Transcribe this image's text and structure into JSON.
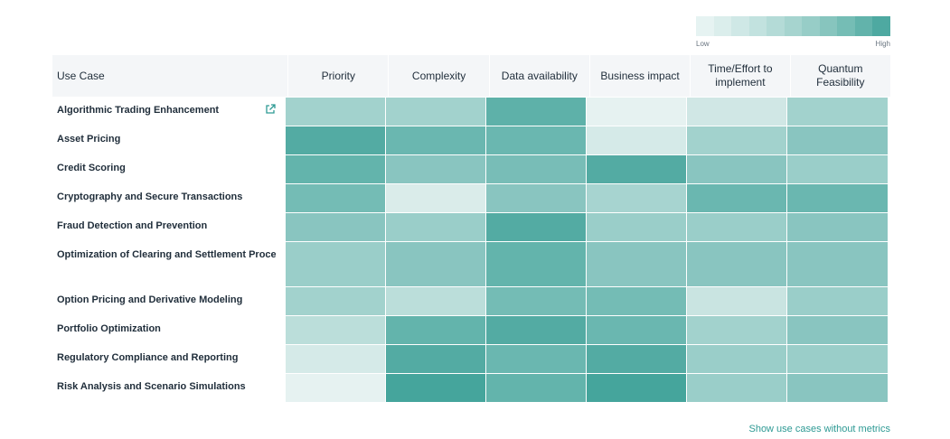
{
  "legend": {
    "low_label": "Low",
    "high_label": "High",
    "colors": [
      "#e6f3f2",
      "#dbeeec",
      "#cfe8e6",
      "#c2e2df",
      "#b4dbd7",
      "#a6d4cf",
      "#97cdc7",
      "#87c5be",
      "#75bdb5",
      "#62b3ab",
      "#4ea9a1"
    ]
  },
  "table": {
    "columns": [
      "Use Case",
      "Priority",
      "Complexity",
      "Data availability",
      "Business impact",
      "Time/Effort to implement",
      "Quantum Feasibility"
    ],
    "rows": [
      {
        "label": "Algorithmic Trading Enhancement",
        "link_icon": "external-link-icon",
        "levels": [
          0.45,
          0.45,
          0.85,
          0.05,
          0.18,
          0.45
        ]
      },
      {
        "label": "Asset Pricing",
        "levels": [
          0.92,
          0.78,
          0.78,
          0.15,
          0.45,
          0.6
        ]
      },
      {
        "label": "Credit Scoring",
        "levels": [
          0.82,
          0.6,
          0.7,
          0.92,
          0.6,
          0.5
        ]
      },
      {
        "label": "Cryptography and Secure Transactions",
        "levels": [
          0.72,
          0.12,
          0.6,
          0.42,
          0.78,
          0.78
        ]
      },
      {
        "label": "Fraud Detection and Prevention",
        "levels": [
          0.6,
          0.5,
          0.92,
          0.5,
          0.5,
          0.6
        ]
      },
      {
        "label": "Optimization of Clearing and Settlement Proce",
        "levels": [
          0.5,
          0.6,
          0.82,
          0.6,
          0.6,
          0.6
        ]
      },
      {
        "label": "Option Pricing and Derivative Modeling",
        "levels": [
          0.45,
          0.3,
          0.72,
          0.72,
          0.22,
          0.5
        ]
      },
      {
        "label": "Portfolio Optimization",
        "levels": [
          0.3,
          0.82,
          0.92,
          0.78,
          0.45,
          0.6
        ]
      },
      {
        "label": "Regulatory Compliance and Reporting",
        "levels": [
          0.15,
          0.92,
          0.78,
          0.92,
          0.5,
          0.5
        ]
      },
      {
        "label": "Risk Analysis and Scenario Simulations",
        "levels": [
          0.05,
          1.0,
          0.82,
          1.0,
          0.5,
          0.6
        ]
      }
    ]
  },
  "footer": {
    "link_label": "Show use cases without metrics"
  },
  "colors": {
    "link": "#2e9a94",
    "header_bg": "#f4f6f8",
    "low": "#eef6f5",
    "high": "#45a59c"
  }
}
